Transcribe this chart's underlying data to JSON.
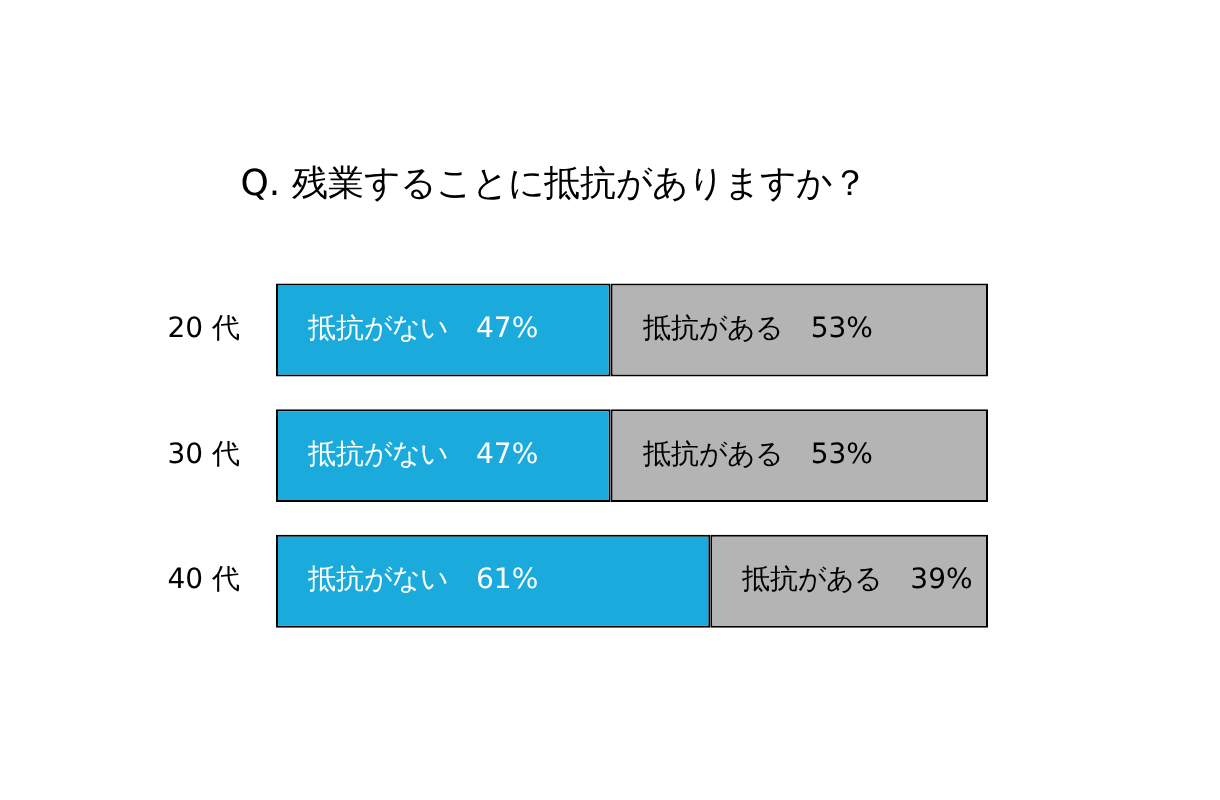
{
  "chart_data": {
    "type": "bar",
    "orientation": "horizontal",
    "stacked": true,
    "title": "Q. 残業することに抵抗がありますか？",
    "categories": [
      "20 代",
      "30 代",
      "40 代"
    ],
    "series": [
      {
        "name": "抵抗がない",
        "color": "#1aabdc",
        "values": [
          47,
          47,
          61
        ],
        "value_labels": [
          "47%",
          "47%",
          "61%"
        ]
      },
      {
        "name": "抵抗がある",
        "color": "#b4b4b4",
        "values": [
          53,
          53,
          39
        ],
        "value_labels": [
          "53%",
          "53%",
          "39%"
        ]
      }
    ],
    "tick_labels": "y",
    "legend": false
  }
}
